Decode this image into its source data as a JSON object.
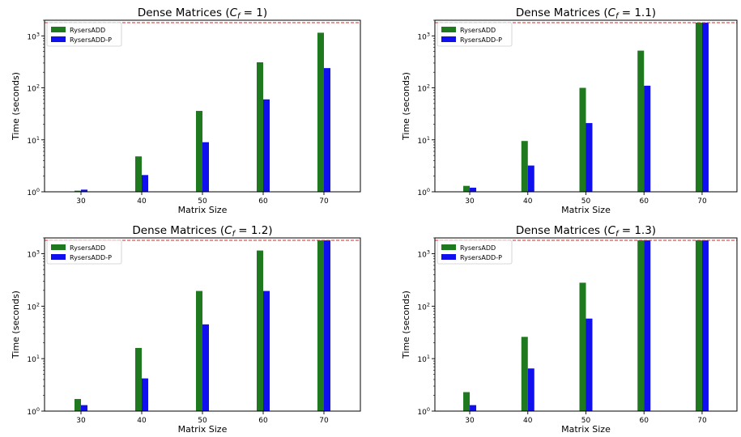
{
  "chart_data": [
    {
      "type": "bar",
      "title_prefix": "Dense Matrices (",
      "title_symbol": "C",
      "title_sub": "f",
      "title_suffix": " = 1)",
      "xlabel": "Matrix Size",
      "ylabel": "Time (seconds)",
      "yscale": "log",
      "ylim": [
        1,
        2000
      ],
      "yticks": [
        {
          "base": "10",
          "exp": "0"
        },
        {
          "base": "10",
          "exp": "1"
        },
        {
          "base": "10",
          "exp": "2"
        },
        {
          "base": "10",
          "exp": "3"
        }
      ],
      "timeout_line": 1800,
      "categories": [
        "30",
        "40",
        "50",
        "60",
        "70"
      ],
      "series": [
        {
          "name": "RysersADD",
          "color": "#1f7a1f",
          "values": [
            1.05,
            4.8,
            36,
            310,
            1150
          ]
        },
        {
          "name": "RysersADD-P",
          "color": "#1010ee",
          "values": [
            1.1,
            2.1,
            9,
            60,
            240
          ]
        }
      ],
      "legend_loc": "upper left",
      "grid": false
    },
    {
      "type": "bar",
      "title_prefix": "Dense Matrices (",
      "title_symbol": "C",
      "title_sub": "f",
      "title_suffix": " = 1.1)",
      "xlabel": "Matrix Size",
      "ylabel": "Time (seconds)",
      "yscale": "log",
      "ylim": [
        1,
        2000
      ],
      "yticks": [
        {
          "base": "10",
          "exp": "0"
        },
        {
          "base": "10",
          "exp": "1"
        },
        {
          "base": "10",
          "exp": "2"
        },
        {
          "base": "10",
          "exp": "3"
        }
      ],
      "timeout_line": 1800,
      "categories": [
        "30",
        "40",
        "50",
        "60",
        "70"
      ],
      "series": [
        {
          "name": "RysersADD",
          "color": "#1f7a1f",
          "values": [
            1.3,
            9.5,
            100,
            520,
            1800
          ]
        },
        {
          "name": "RysersADD-P",
          "color": "#1010ee",
          "values": [
            1.2,
            3.2,
            21,
            110,
            1800
          ]
        }
      ],
      "legend_loc": "upper left",
      "grid": false
    },
    {
      "type": "bar",
      "title_prefix": "Dense Matrices (",
      "title_symbol": "C",
      "title_sub": "f",
      "title_suffix": " = 1.2)",
      "xlabel": "Matrix Size",
      "ylabel": "Time (seconds)",
      "yscale": "log",
      "ylim": [
        1,
        2000
      ],
      "yticks": [
        {
          "base": "10",
          "exp": "0"
        },
        {
          "base": "10",
          "exp": "1"
        },
        {
          "base": "10",
          "exp": "2"
        },
        {
          "base": "10",
          "exp": "3"
        }
      ],
      "timeout_line": 1800,
      "categories": [
        "30",
        "40",
        "50",
        "60",
        "70"
      ],
      "series": [
        {
          "name": "RysersADD",
          "color": "#1f7a1f",
          "values": [
            1.7,
            16,
            195,
            1150,
            1800
          ]
        },
        {
          "name": "RysersADD-P",
          "color": "#1010ee",
          "values": [
            1.3,
            4.2,
            45,
            195,
            1800
          ]
        }
      ],
      "legend_loc": "upper left",
      "grid": false
    },
    {
      "type": "bar",
      "title_prefix": "Dense Matrices (",
      "title_symbol": "C",
      "title_sub": "f",
      "title_suffix": " = 1.3)",
      "xlabel": "Matrix Size",
      "ylabel": "Time (seconds)",
      "yscale": "log",
      "ylim": [
        1,
        2000
      ],
      "yticks": [
        {
          "base": "10",
          "exp": "0"
        },
        {
          "base": "10",
          "exp": "1"
        },
        {
          "base": "10",
          "exp": "2"
        },
        {
          "base": "10",
          "exp": "3"
        }
      ],
      "timeout_line": 1800,
      "categories": [
        "30",
        "40",
        "50",
        "60",
        "70"
      ],
      "series": [
        {
          "name": "RysersADD",
          "color": "#1f7a1f",
          "values": [
            2.3,
            26,
            280,
            1800,
            1800
          ]
        },
        {
          "name": "RysersADD-P",
          "color": "#1010ee",
          "values": [
            1.3,
            6.5,
            58,
            1800,
            1800
          ]
        }
      ],
      "legend_loc": "upper left",
      "grid": false
    }
  ]
}
